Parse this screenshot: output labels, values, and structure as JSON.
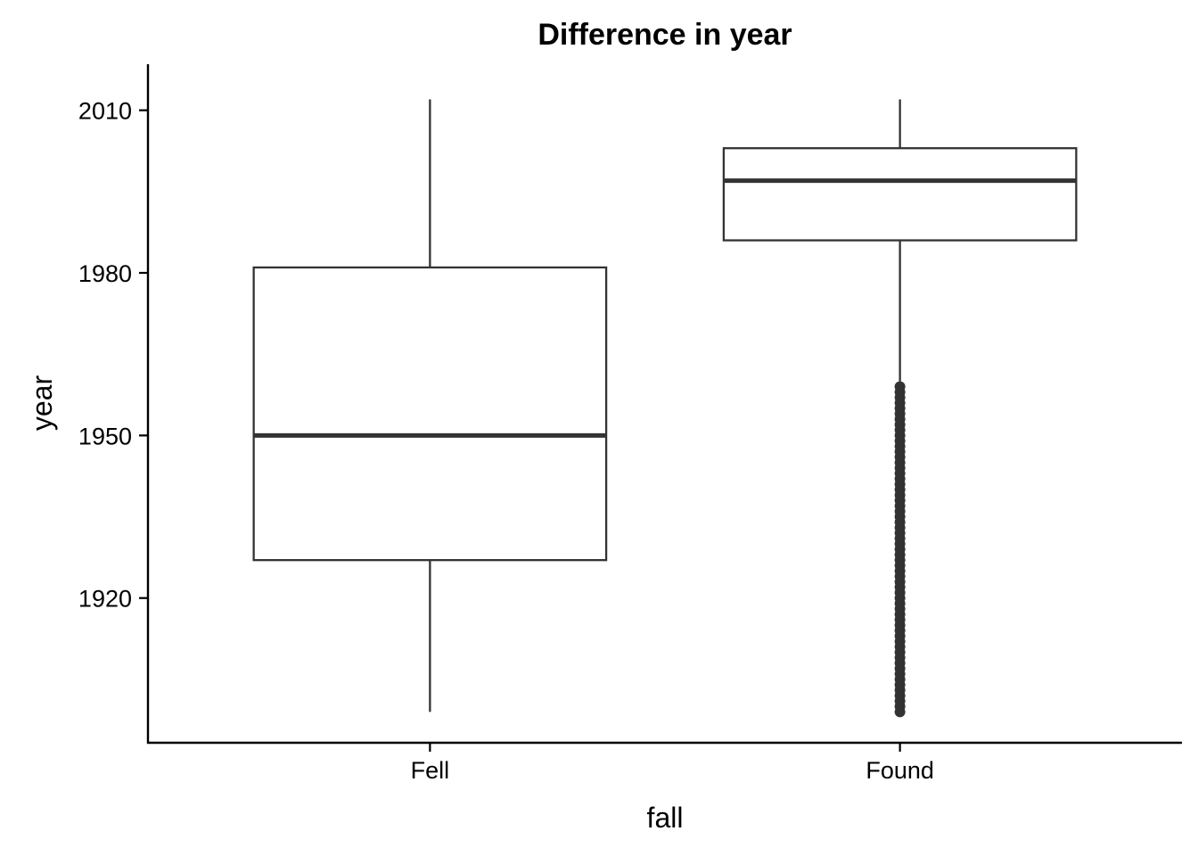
{
  "chart_data": {
    "type": "boxplot",
    "title": "Difference in year",
    "xlabel": "fall",
    "ylabel": "year",
    "categories": [
      "Fell",
      "Found"
    ],
    "ylim": [
      1893.3,
      2018.5
    ],
    "yticks": [
      1920,
      1950,
      1980,
      2010
    ],
    "grid": false,
    "boxes": [
      {
        "category": "Fell",
        "whisker_low": 1899,
        "q1": 1927,
        "median": 1950,
        "q3": 1981,
        "whisker_high": 2012,
        "outliers": []
      },
      {
        "category": "Found",
        "whisker_low": 1960,
        "q1": 1986,
        "median": 1997,
        "q3": 2003,
        "whisker_high": 2012,
        "outliers": [
          1899,
          1900,
          1901,
          1902,
          1903,
          1904,
          1905,
          1906,
          1907,
          1908,
          1909,
          1910,
          1911,
          1912,
          1913,
          1914,
          1915,
          1916,
          1917,
          1918,
          1919,
          1920,
          1921,
          1922,
          1923,
          1924,
          1925,
          1926,
          1927,
          1928,
          1929,
          1930,
          1931,
          1932,
          1933,
          1934,
          1935,
          1936,
          1937,
          1938,
          1939,
          1940,
          1941,
          1942,
          1943,
          1944,
          1945,
          1946,
          1947,
          1948,
          1949,
          1950,
          1951,
          1952,
          1953,
          1954,
          1955,
          1956,
          1957,
          1958,
          1959
        ]
      }
    ]
  }
}
